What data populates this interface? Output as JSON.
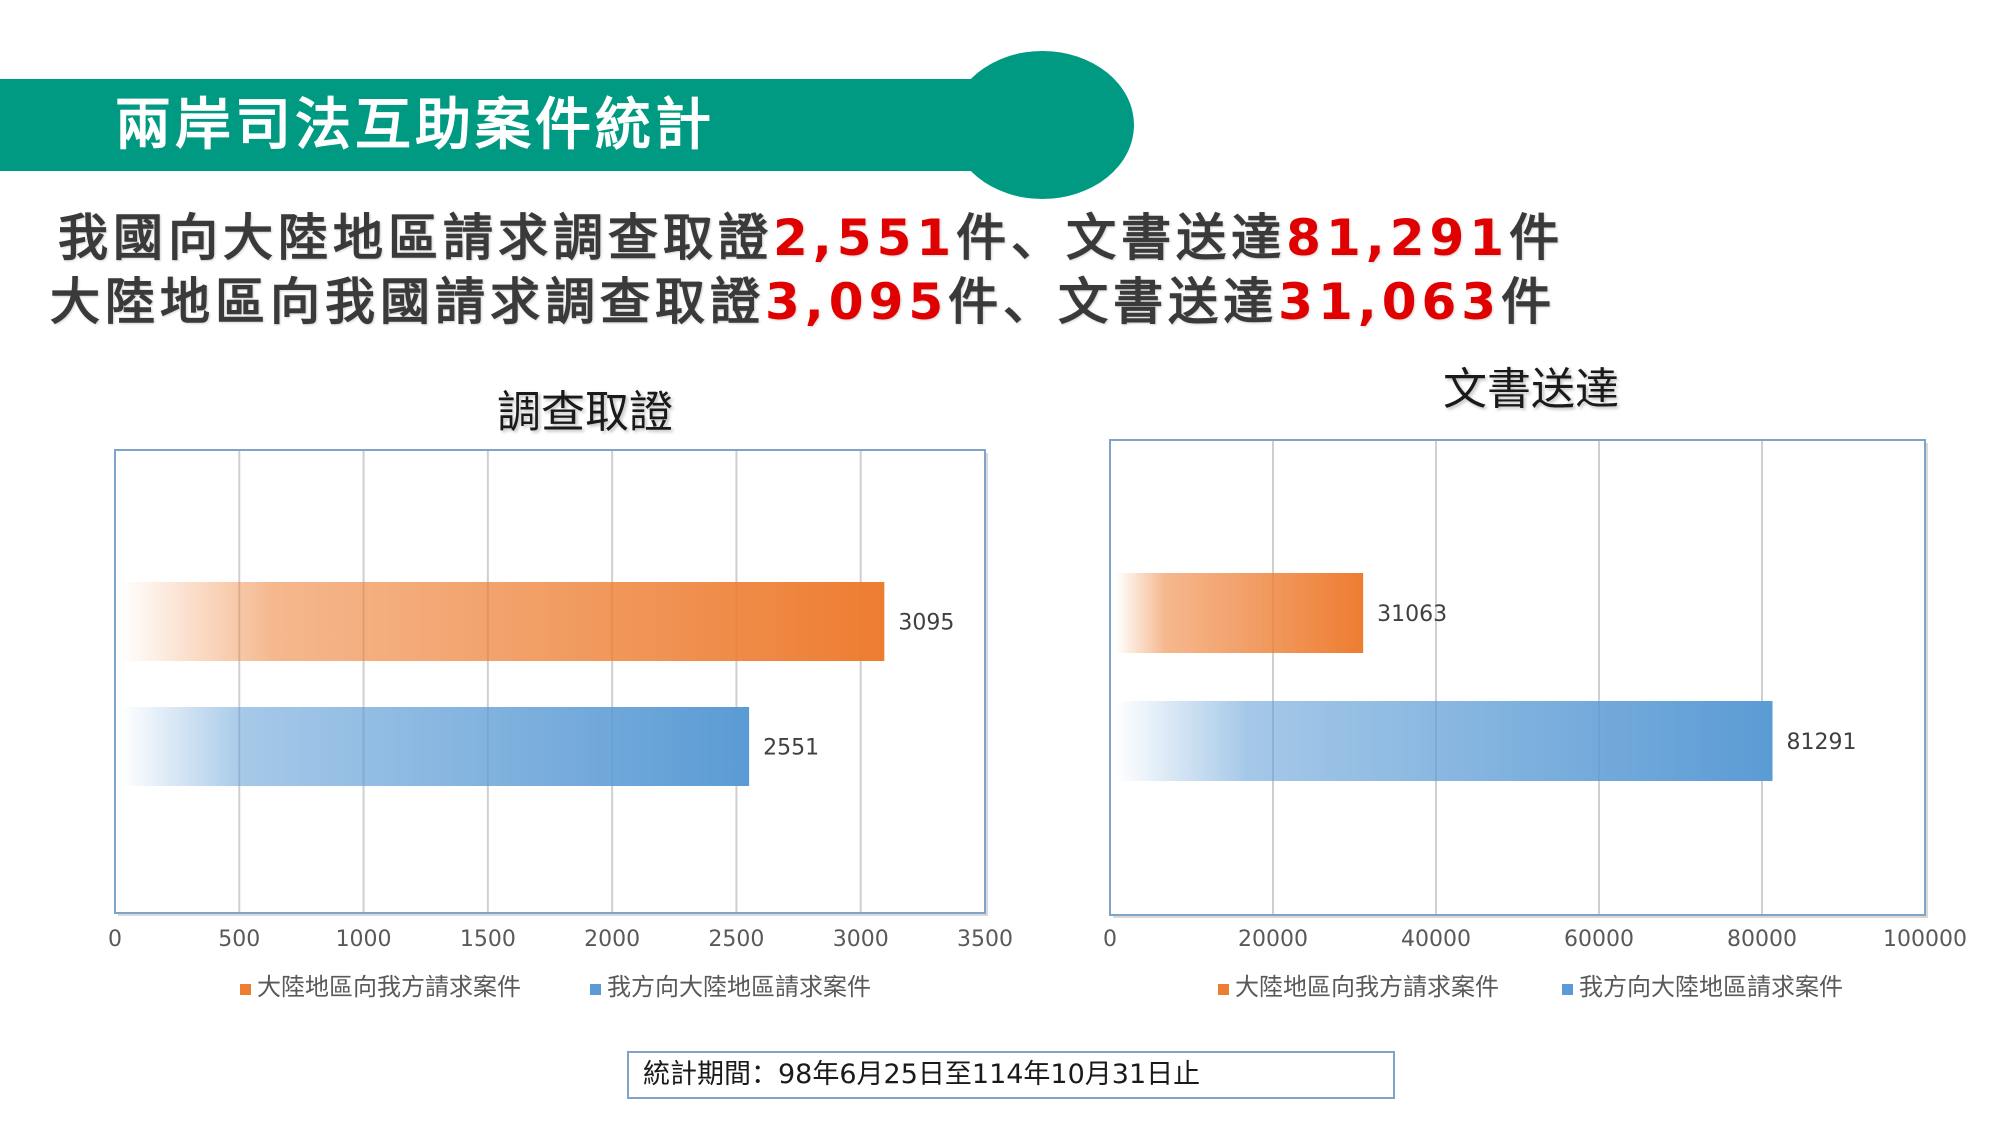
{
  "header": {
    "title": "兩岸司法互助案件統計"
  },
  "summary": {
    "line1": {
      "text1": "我國向大陸地區請求調查取證",
      "num1": "2,551",
      "text2": "件、文書送達",
      "num2": "81,291",
      "text3": "件"
    },
    "line2": {
      "text1": "大陸地區向我國請求調查取證",
      "num1": "3,095",
      "text2": "件、文書送達",
      "num2": "31,063",
      "text3": "件"
    }
  },
  "colors": {
    "banner": "#009a82",
    "highlight": "#e00000",
    "orange": "#ed7d31",
    "blue": "#5b9bd5"
  },
  "chart_data": [
    {
      "type": "bar",
      "orientation": "horizontal",
      "title": "調查取證",
      "series": [
        {
          "name": "大陸地區向我方請求案件",
          "values": [
            3095
          ],
          "color": "#ed7d31"
        },
        {
          "name": "我方向大陸地區請求案件",
          "values": [
            2551
          ],
          "color": "#5b9bd5"
        }
      ],
      "data_labels": [
        "3095",
        "2551"
      ],
      "xlim": [
        0,
        3500
      ],
      "x_ticks": [
        "0",
        "500",
        "1000",
        "1500",
        "2000",
        "2500",
        "3000",
        "3500"
      ],
      "grid": true,
      "legend": "bottom"
    },
    {
      "type": "bar",
      "orientation": "horizontal",
      "title": "文書送達",
      "series": [
        {
          "name": "大陸地區向我方請求案件",
          "values": [
            31063
          ],
          "color": "#ed7d31"
        },
        {
          "name": "我方向大陸地區請求案件",
          "values": [
            81291
          ],
          "color": "#5b9bd5"
        }
      ],
      "data_labels": [
        "31063",
        "81291"
      ],
      "xlim": [
        0,
        100000
      ],
      "x_ticks": [
        "0",
        "20000",
        "40000",
        "60000",
        "80000",
        "100000"
      ],
      "grid": true,
      "legend": "bottom"
    }
  ],
  "footer": {
    "period": "統計期間：98年6月25日至114年10月31日止"
  }
}
